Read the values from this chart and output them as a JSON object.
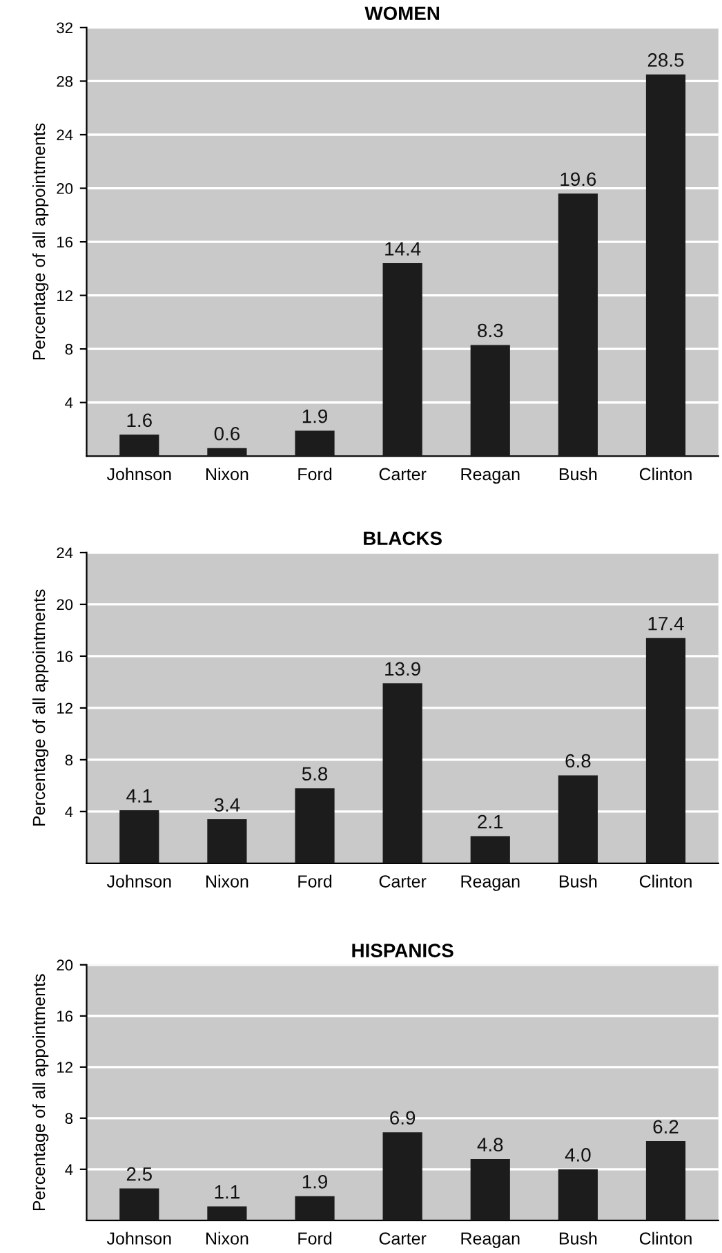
{
  "chart_data": [
    {
      "type": "bar",
      "title": "WOMEN",
      "ylabel": "Percentage of all appointments",
      "categories": [
        "Johnson",
        "Nixon",
        "Ford",
        "Carter",
        "Reagan",
        "Bush",
        "Clinton"
      ],
      "values": [
        1.6,
        0.6,
        1.9,
        14.4,
        8.3,
        19.6,
        28.5
      ],
      "value_labels": [
        "1.6",
        "0.6",
        "1.9",
        "14.4",
        "8.3",
        "19.6",
        "28.5"
      ],
      "color": "#1c1c1c",
      "ylim": [
        0,
        32
      ],
      "yticks": [
        4,
        8,
        12,
        16,
        20,
        24,
        28,
        32
      ],
      "grid": "y"
    },
    {
      "type": "bar",
      "title": "BLACKS",
      "ylabel": "Percentage of all appointments",
      "categories": [
        "Johnson",
        "Nixon",
        "Ford",
        "Carter",
        "Reagan",
        "Bush",
        "Clinton"
      ],
      "values": [
        4.1,
        3.4,
        5.8,
        13.9,
        2.1,
        6.8,
        17.4
      ],
      "value_labels": [
        "4.1",
        "3.4",
        "5.8",
        "13.9",
        "2.1",
        "6.8",
        "17.4"
      ],
      "color": "#1c1c1c",
      "ylim": [
        0,
        24
      ],
      "yticks": [
        4,
        8,
        12,
        16,
        20,
        24
      ],
      "grid": "y"
    },
    {
      "type": "bar",
      "title": "HISPANICS",
      "ylabel": "Percentage of all appointments",
      "categories": [
        "Johnson",
        "Nixon",
        "Ford",
        "Carter",
        "Reagan",
        "Bush",
        "Clinton"
      ],
      "values": [
        2.5,
        1.1,
        1.9,
        6.9,
        4.8,
        4.0,
        6.2
      ],
      "value_labels": [
        "2.5",
        "1.1",
        "1.9",
        "6.9",
        "4.8",
        "4.0",
        "6.2"
      ],
      "color": "#1c1c1c",
      "ylim": [
        0,
        20
      ],
      "yticks": [
        4,
        8,
        12,
        16,
        20
      ],
      "grid": "y"
    }
  ]
}
